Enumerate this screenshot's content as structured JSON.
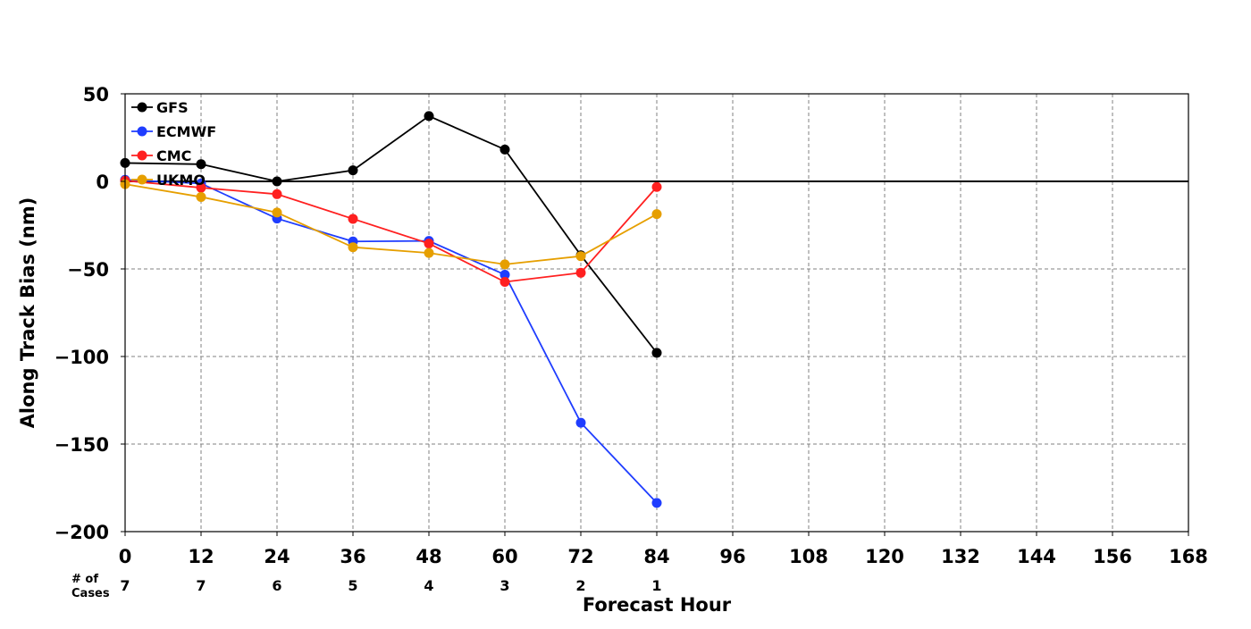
{
  "chart_data": {
    "type": "line",
    "xlabel": "Forecast Hour",
    "ylabel": "Along Track Bias (nm)",
    "xlim": [
      0,
      168
    ],
    "ylim": [
      -200,
      50
    ],
    "x_ticks": [
      0,
      12,
      24,
      36,
      48,
      60,
      72,
      84,
      96,
      108,
      120,
      132,
      144,
      156,
      168
    ],
    "y_ticks": [
      50,
      0,
      -50,
      -100,
      -150,
      -200
    ],
    "y_tick_labels": [
      "50",
      "0",
      "−50",
      "−100",
      "−150",
      "−200"
    ],
    "grid": true,
    "zero_line": true,
    "legend_position": "top-left",
    "series": [
      {
        "name": "GFS",
        "color": "#000000",
        "x": [
          0,
          12,
          24,
          36,
          48,
          60,
          72,
          84
        ],
        "values": [
          10.5,
          9.8,
          0,
          6.3,
          37.3,
          18.2,
          -42.2,
          -97.9
        ]
      },
      {
        "name": "ECMWF",
        "color": "#1f3dff",
        "x": [
          0,
          12,
          24,
          36,
          48,
          60,
          72,
          84
        ],
        "values": [
          0.9,
          -1.2,
          -21.2,
          -34.3,
          -34.0,
          -53.3,
          -137.8,
          -183.6
        ]
      },
      {
        "name": "CMC",
        "color": "#ff2020",
        "x": [
          0,
          12,
          24,
          36,
          48,
          60,
          72,
          84
        ],
        "values": [
          0.4,
          -3.6,
          -7.3,
          -21.4,
          -35.5,
          -57.4,
          -52.2,
          -3.2
        ]
      },
      {
        "name": "UKMO",
        "color": "#e69f00",
        "x": [
          0,
          12,
          24,
          36,
          48,
          60,
          72,
          84
        ],
        "values": [
          -1.6,
          -8.9,
          -17.8,
          -37.6,
          -40.9,
          -47.4,
          -42.7,
          -18.7
        ]
      }
    ],
    "cases": {
      "label_line1": "# of",
      "label_line2": "Cases",
      "x": [
        0,
        12,
        24,
        36,
        48,
        60,
        72,
        84
      ],
      "values": [
        "7",
        "7",
        "6",
        "5",
        "4",
        "3",
        "2",
        "1"
      ]
    }
  }
}
